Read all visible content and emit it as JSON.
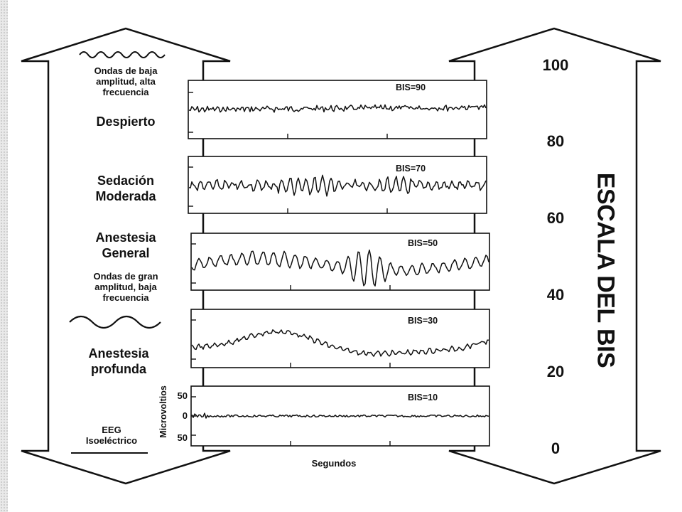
{
  "left_column": {
    "low_waves_caption": [
      "Ondas de baja",
      "amplitud, alta",
      "frecuencia"
    ],
    "state_awake": "Despierto",
    "state_moderate": [
      "Sedación",
      "Moderada"
    ],
    "state_general": [
      "Anestesia",
      "General"
    ],
    "high_waves_caption": [
      "Ondas de gran",
      "amplitud, baja",
      "frecuencia"
    ],
    "state_deep": [
      "Anestesia",
      "profunda"
    ],
    "state_iso": [
      "EEG",
      "Isoeléctrico"
    ]
  },
  "panels": [
    {
      "label": "BIS=90"
    },
    {
      "label": "BIS=70"
    },
    {
      "label": "BIS=50"
    },
    {
      "label": "BIS=30"
    },
    {
      "label": "BIS=10"
    }
  ],
  "axis": {
    "ylabel": "Microvoltios",
    "ticks": [
      "50",
      "0",
      "50"
    ],
    "xlabel": "Segundos"
  },
  "scale": {
    "title": "ESCALA DEL BIS",
    "values": [
      "100",
      "80",
      "60",
      "40",
      "20",
      "0"
    ]
  },
  "colors": {
    "ink": "#111111",
    "background": "#ffffff",
    "edge": "#e9e9e9"
  }
}
